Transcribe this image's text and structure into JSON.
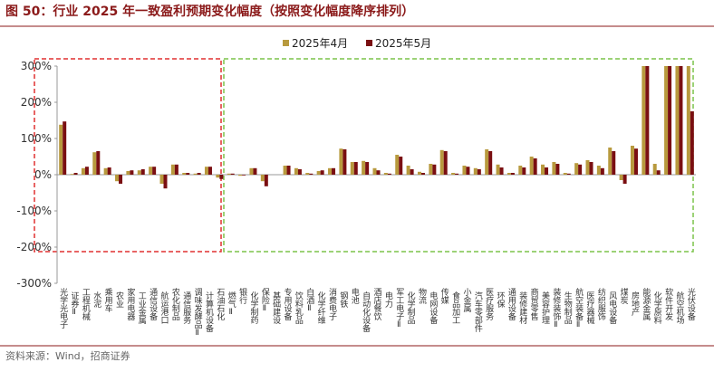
{
  "header": {
    "title": "图 50：行业 2025 年一致盈利预期变化幅度（按照变化幅度降序排列）"
  },
  "chart_data": {
    "type": "bar",
    "categories": [
      "光学光电子",
      "证券Ⅱ",
      "工程机械",
      "水泥",
      "乘用车",
      "农业",
      "家用电器",
      "工业金属",
      "通信设备",
      "航运港口",
      "农化制品",
      "通信服务",
      "调味发酵品Ⅱ",
      "计算机设备",
      "石油石化",
      "燃气Ⅱ",
      "银行",
      "化学制药",
      "保险Ⅱ",
      "基础建设",
      "专用设备",
      "饮料乳品",
      "白酒Ⅱ",
      "化学纤维",
      "消费电子",
      "钢铁",
      "电池",
      "自动化设备",
      "酒店餐饮",
      "电力",
      "军工电子Ⅱ",
      "化学制品",
      "物流",
      "电网设备",
      "传媒",
      "食品加工",
      "小金属",
      "汽车零部件",
      "医疗服务",
      "环保",
      "通用设备",
      "装修建材",
      "商贸零售",
      "美容护理",
      "装修装饰Ⅱ",
      "生物制品",
      "航空装备Ⅱ",
      "医疗器械",
      "纺织服饰",
      "风电设备",
      "煤炭",
      "房地产",
      "能源金属",
      "化学原料",
      "软件开发",
      "航空机场",
      "光伏设备"
    ],
    "series": [
      {
        "name": "2025年4月",
        "color": "#b89a3e",
        "values": [
          138,
          2,
          18,
          62,
          18,
          -18,
          10,
          12,
          22,
          -25,
          28,
          5,
          3,
          22,
          -8,
          3,
          -3,
          18,
          -18,
          0,
          25,
          18,
          5,
          10,
          18,
          72,
          35,
          38,
          18,
          5,
          55,
          25,
          8,
          30,
          68,
          5,
          25,
          18,
          70,
          28,
          5,
          25,
          50,
          28,
          35,
          5,
          32,
          40,
          25,
          75,
          -15,
          80,
          300,
          30,
          300,
          300,
          300
        ]
      },
      {
        "name": "2025年5月",
        "color": "#7a0f12",
        "values": [
          147,
          5,
          22,
          65,
          20,
          -25,
          12,
          15,
          22,
          -38,
          28,
          5,
          5,
          22,
          -12,
          3,
          -2,
          18,
          -32,
          0,
          25,
          15,
          3,
          12,
          18,
          70,
          35,
          35,
          12,
          3,
          50,
          15,
          5,
          28,
          65,
          3,
          22,
          15,
          65,
          20,
          5,
          20,
          45,
          20,
          30,
          3,
          28,
          35,
          18,
          65,
          -25,
          72,
          300,
          12,
          300,
          300,
          175
        ]
      }
    ],
    "ylim": [
      -300,
      300
    ],
    "yticks": [
      {
        "value": -300,
        "label": "-300%"
      },
      {
        "value": -200,
        "label": "-200%"
      },
      {
        "value": -100,
        "label": "-100%"
      },
      {
        "value": 0,
        "label": "0%"
      },
      {
        "value": 100,
        "label": "100%"
      },
      {
        "value": 200,
        "label": "200%"
      },
      {
        "value": 300,
        "label": "300%"
      }
    ],
    "legend": "top"
  },
  "footer": {
    "source": "资料来源：Wind，招商证券"
  }
}
